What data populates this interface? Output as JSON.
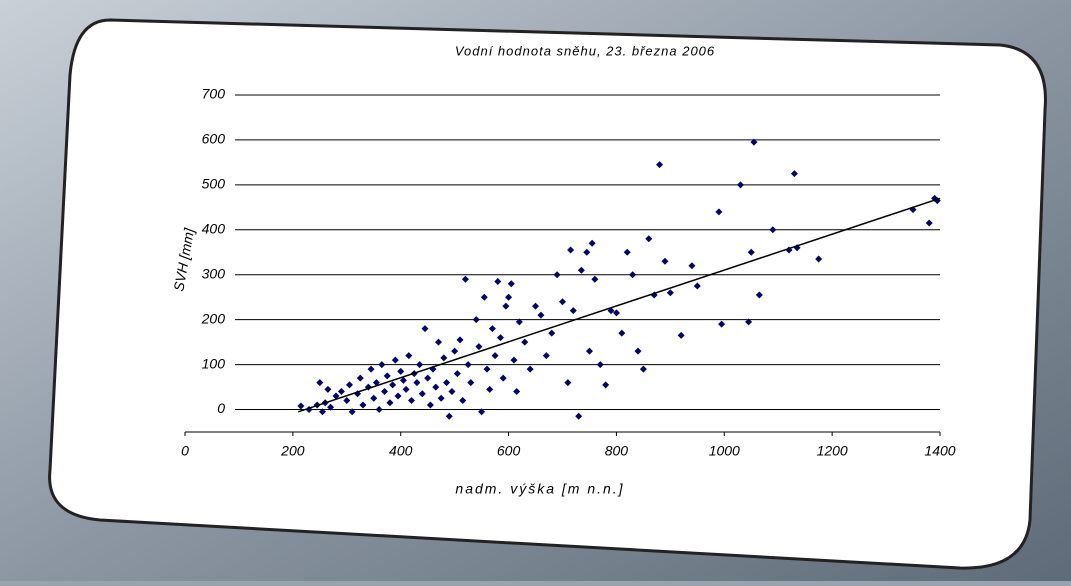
{
  "chart_data": {
    "type": "scatter",
    "title": "Vodní hodnota sněhu, 23. března 2006",
    "x_label": "nadm. výška [m n.n.]",
    "y_label": "SVH [mm]",
    "color": "#00007a",
    "trend_color": "#000000",
    "grid": true,
    "xlim": [
      0,
      1400
    ],
    "ylim": [
      -50,
      700
    ],
    "xticks": [
      0,
      200,
      400,
      600,
      800,
      1000,
      1200,
      1400
    ],
    "yticks": [
      0,
      100,
      200,
      300,
      400,
      500,
      600,
      700
    ],
    "x": [
      215,
      230,
      245,
      250,
      255,
      260,
      265,
      270,
      280,
      290,
      300,
      305,
      310,
      320,
      325,
      330,
      340,
      345,
      350,
      355,
      360,
      365,
      370,
      375,
      380,
      385,
      390,
      395,
      400,
      405,
      410,
      415,
      420,
      425,
      430,
      435,
      440,
      445,
      450,
      455,
      460,
      465,
      470,
      475,
      480,
      485,
      490,
      495,
      500,
      505,
      510,
      515,
      520,
      525,
      530,
      540,
      545,
      550,
      555,
      560,
      565,
      570,
      575,
      580,
      585,
      590,
      595,
      600,
      605,
      610,
      615,
      620,
      630,
      640,
      650,
      660,
      670,
      680,
      690,
      700,
      710,
      715,
      720,
      730,
      735,
      745,
      750,
      755,
      760,
      770,
      780,
      790,
      800,
      810,
      820,
      830,
      840,
      850,
      860,
      870,
      880,
      890,
      900,
      920,
      940,
      950,
      990,
      995,
      1030,
      1045,
      1050,
      1055,
      1065,
      1090,
      1120,
      1130,
      1135,
      1175,
      1350,
      1380,
      1390,
      1395
    ],
    "y": [
      8,
      0,
      10,
      60,
      -5,
      15,
      45,
      5,
      30,
      40,
      20,
      55,
      -5,
      35,
      70,
      10,
      50,
      90,
      25,
      60,
      0,
      100,
      40,
      75,
      15,
      55,
      110,
      30,
      85,
      65,
      45,
      120,
      20,
      80,
      60,
      100,
      35,
      180,
      70,
      10,
      90,
      50,
      150,
      25,
      115,
      60,
      -15,
      40,
      130,
      80,
      155,
      20,
      290,
      100,
      60,
      200,
      140,
      -5,
      250,
      90,
      45,
      180,
      120,
      285,
      160,
      70,
      230,
      250,
      280,
      110,
      40,
      195,
      150,
      90,
      230,
      210,
      120,
      170,
      300,
      240,
      60,
      355,
      220,
      -15,
      310,
      350,
      130,
      370,
      290,
      100,
      55,
      220,
      215,
      170,
      350,
      300,
      130,
      90,
      380,
      255,
      545,
      330,
      260,
      165,
      320,
      275,
      440,
      190,
      500,
      195,
      350,
      595,
      255,
      400,
      355,
      525,
      360,
      335,
      445,
      415,
      470,
      465
    ],
    "trend": {
      "x": [
        210,
        1400
      ],
      "y": [
        -5,
        470
      ]
    }
  }
}
